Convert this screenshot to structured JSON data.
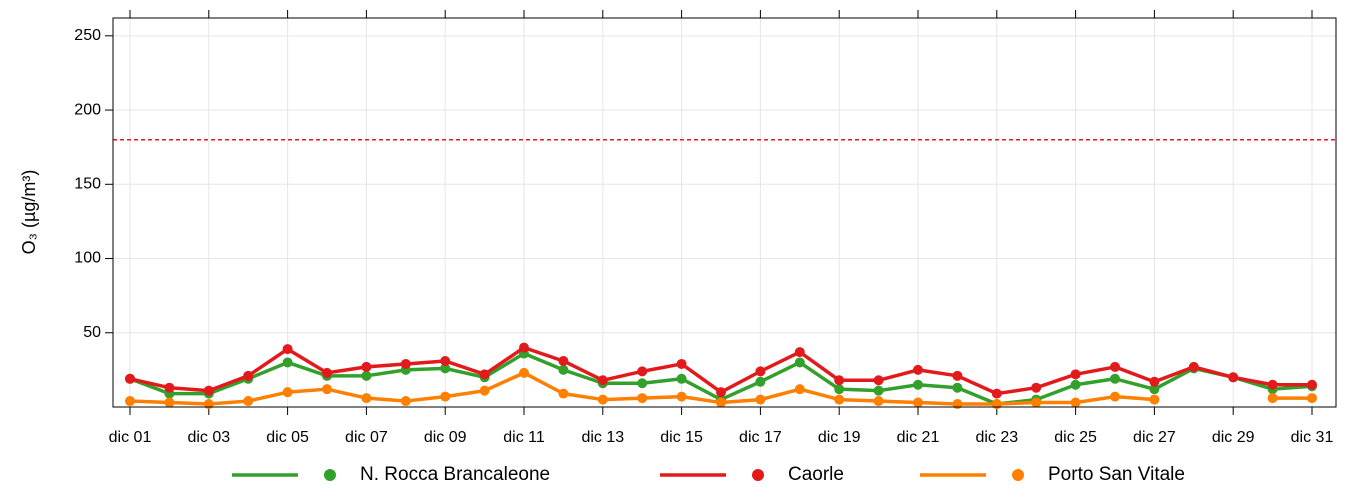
{
  "chart_data": {
    "type": "line",
    "ylabel": "O₃ (µg/m³)",
    "categories": [
      "dic 01",
      null,
      "dic 03",
      null,
      "dic 05",
      null,
      "dic 07",
      null,
      "dic 09",
      null,
      "dic 11",
      null,
      "dic 13",
      null,
      "dic 15",
      null,
      "dic 17",
      null,
      "dic 19",
      null,
      "dic 21",
      null,
      "dic 23",
      null,
      "dic 25",
      null,
      "dic 27",
      null,
      "dic 29",
      null,
      "dic 31"
    ],
    "series": [
      {
        "name": "N. Rocca Brancaleone",
        "color": "#33a02c",
        "values": [
          19,
          9,
          9,
          19,
          30,
          21,
          21,
          25,
          26,
          20,
          36,
          25,
          16,
          16,
          19,
          5,
          17,
          30,
          12,
          11,
          15,
          13,
          2,
          5,
          15,
          19,
          12,
          26,
          20,
          12,
          14
        ]
      },
      {
        "name": "Caorle",
        "color": "#e31a1c",
        "values": [
          19,
          13,
          11,
          21,
          39,
          23,
          27,
          29,
          31,
          22,
          40,
          31,
          18,
          24,
          29,
          10,
          24,
          37,
          18,
          18,
          25,
          21,
          9,
          13,
          22,
          27,
          17,
          27,
          20,
          15,
          15
        ]
      },
      {
        "name": "Porto San Vitale",
        "color": "#ff7f00",
        "values": [
          4,
          3,
          2,
          4,
          10,
          12,
          6,
          4,
          7,
          11,
          23,
          9,
          5,
          6,
          7,
          3,
          5,
          12,
          5,
          4,
          3,
          2,
          2,
          3,
          3,
          7,
          5,
          null,
          null,
          6,
          6
        ]
      }
    ],
    "hline": {
      "value": 180,
      "color": "#e31a1c"
    },
    "ylim": [
      0,
      262
    ],
    "yticks": [
      50,
      100,
      150,
      200,
      250
    ],
    "grid": true,
    "legend": "bottom"
  }
}
